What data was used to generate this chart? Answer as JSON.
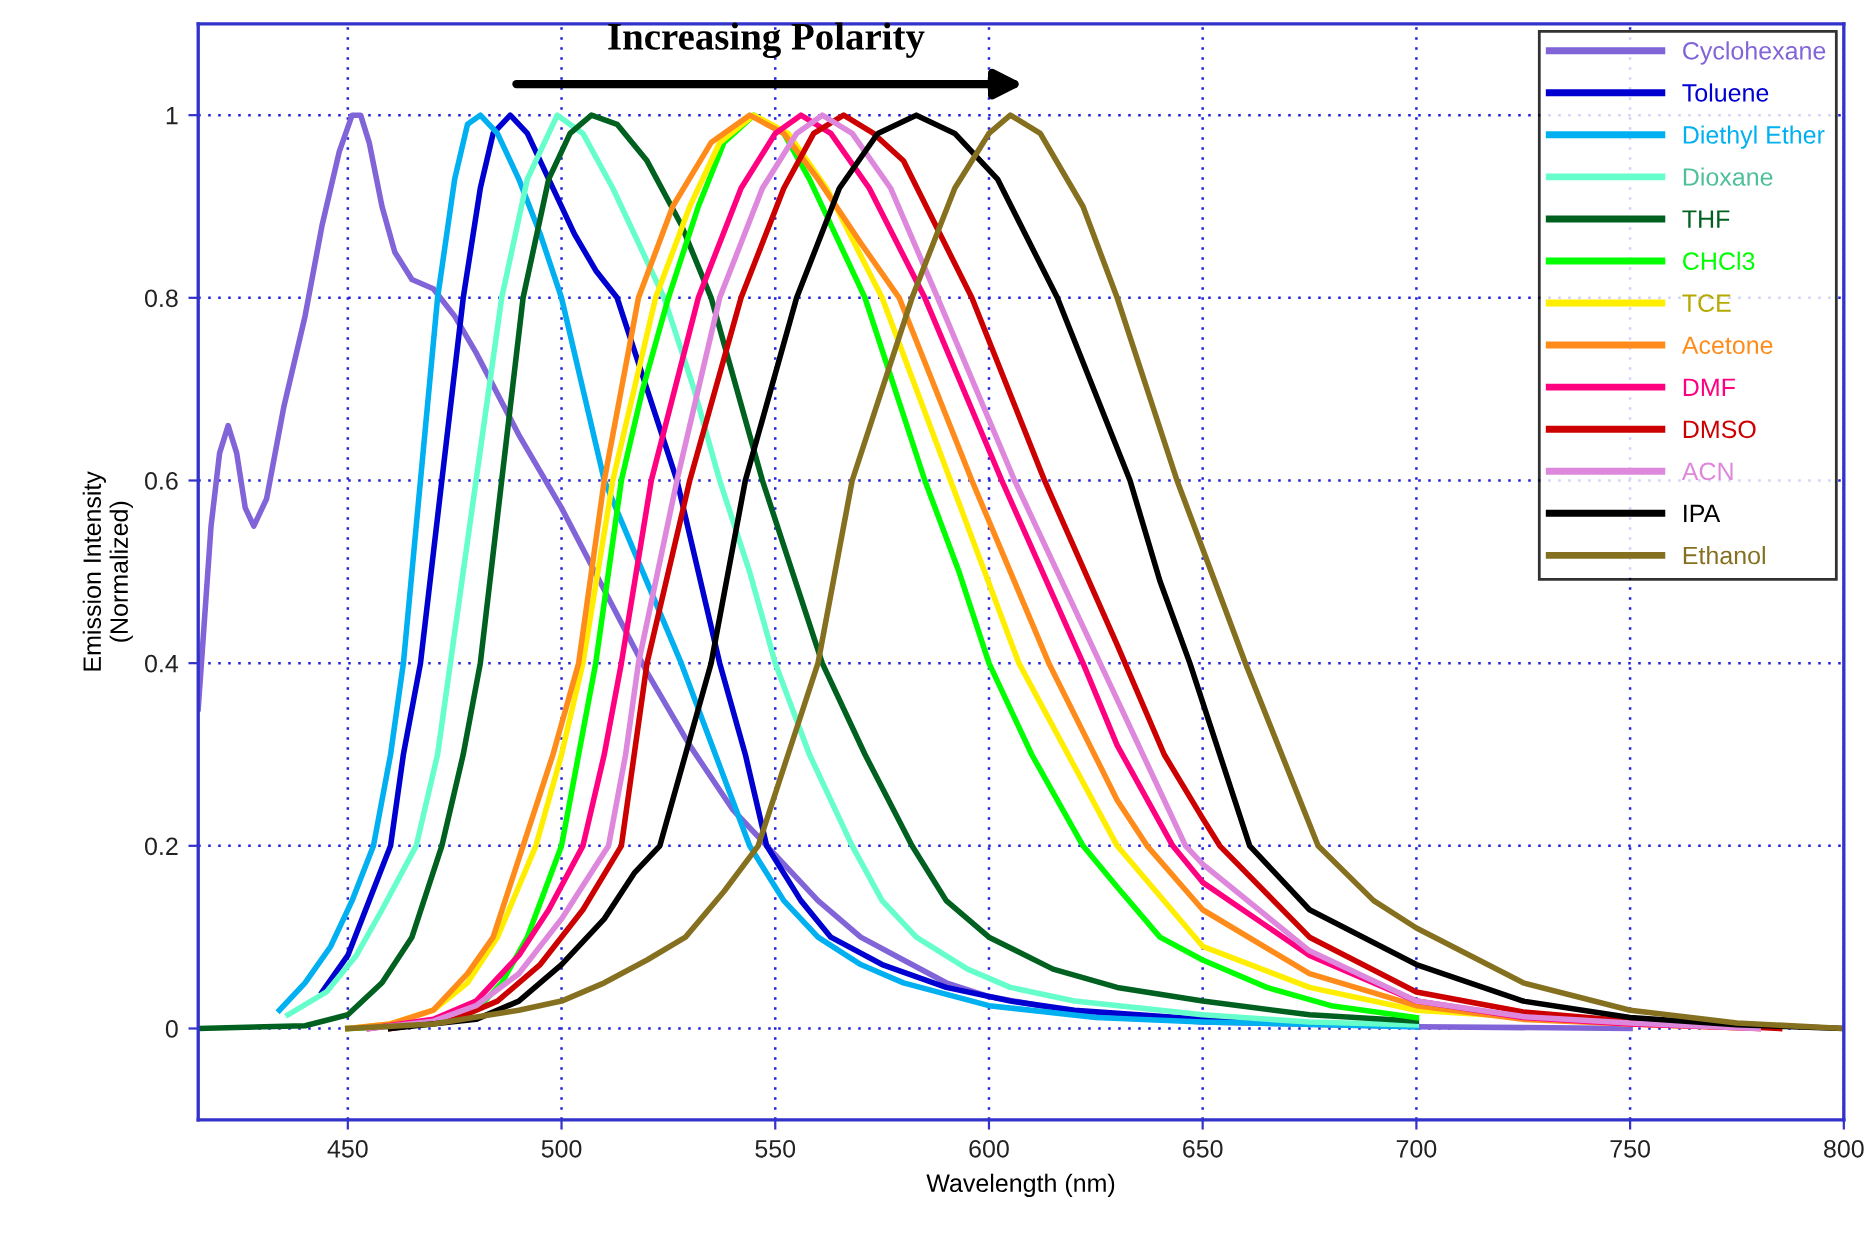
{
  "chart_data": {
    "type": "line",
    "xlabel": "Wavelength (nm)",
    "ylabel": "Emission Intensity\n(Normalized)",
    "annotations": [
      "Increasing Polarity"
    ],
    "xlim": [
      415,
      800
    ],
    "xticks": [
      450,
      500,
      550,
      600,
      650,
      700,
      750,
      800
    ],
    "ylim": [
      -0.1,
      1.1
    ],
    "yticks": [
      0,
      0.2,
      0.4,
      0.6,
      0.8,
      1
    ],
    "grid": true,
    "legend": "top right",
    "line_style": "solid",
    "marker": "none",
    "series": [
      {
        "name": "Cyclohexane",
        "color": "#8064d8",
        "x": [
          415,
          418,
          420,
          422,
          424,
          426,
          428,
          431,
          435,
          440,
          444,
          448,
          451,
          453,
          455,
          458,
          461,
          465,
          470,
          475,
          480,
          490,
          500,
          510,
          520,
          530,
          540,
          550,
          560,
          570,
          580,
          590,
          600,
          620,
          650,
          700,
          750
        ],
        "values": [
          0.35,
          0.55,
          0.63,
          0.66,
          0.63,
          0.57,
          0.55,
          0.58,
          0.68,
          0.78,
          0.88,
          0.96,
          1.0,
          1.0,
          0.97,
          0.9,
          0.85,
          0.82,
          0.81,
          0.78,
          0.74,
          0.65,
          0.57,
          0.48,
          0.39,
          0.31,
          0.24,
          0.19,
          0.14,
          0.1,
          0.075,
          0.05,
          0.035,
          0.018,
          0.007,
          0.002,
          0.0
        ]
      },
      {
        "name": "Toluene",
        "color": "#0000d0",
        "x": [
          444,
          450,
          455,
          460,
          463,
          467,
          472,
          477,
          481,
          484,
          488,
          492,
          497,
          503,
          508,
          513,
          520,
          527,
          532,
          537,
          543,
          548,
          556,
          563,
          575,
          590,
          605,
          620,
          650,
          680,
          700
        ],
        "values": [
          0.04,
          0.08,
          0.14,
          0.2,
          0.3,
          0.4,
          0.6,
          0.8,
          0.92,
          0.98,
          1.0,
          0.98,
          0.93,
          0.87,
          0.83,
          0.8,
          0.7,
          0.6,
          0.5,
          0.4,
          0.3,
          0.2,
          0.14,
          0.1,
          0.07,
          0.045,
          0.03,
          0.02,
          0.01,
          0.005,
          0.003
        ]
      },
      {
        "name": "Diethyl Ether",
        "color": "#00b0f0",
        "x": [
          434,
          440,
          446,
          451,
          456,
          460,
          463,
          467,
          471,
          475,
          478,
          481,
          485,
          490,
          495,
          500,
          505,
          510,
          519,
          528,
          536,
          544,
          552,
          560,
          570,
          580,
          600,
          625,
          650,
          700
        ],
        "values": [
          0.02,
          0.05,
          0.09,
          0.14,
          0.2,
          0.3,
          0.4,
          0.6,
          0.8,
          0.93,
          0.99,
          1.0,
          0.98,
          0.93,
          0.87,
          0.8,
          0.7,
          0.6,
          0.5,
          0.4,
          0.3,
          0.2,
          0.14,
          0.1,
          0.07,
          0.05,
          0.025,
          0.012,
          0.007,
          0.002
        ]
      },
      {
        "name": "Dioxane",
        "color": "#66ffcc",
        "x": [
          436,
          445,
          452,
          458,
          466,
          471,
          474,
          480,
          486,
          492,
          499,
          505,
          512,
          518,
          524,
          531,
          537,
          544,
          550,
          558,
          568,
          575,
          583,
          595,
          605,
          620,
          650,
          675,
          700
        ],
        "values": [
          0.015,
          0.04,
          0.08,
          0.13,
          0.2,
          0.3,
          0.4,
          0.6,
          0.8,
          0.93,
          1.0,
          0.98,
          0.92,
          0.86,
          0.8,
          0.7,
          0.6,
          0.5,
          0.4,
          0.3,
          0.2,
          0.14,
          0.1,
          0.065,
          0.045,
          0.03,
          0.015,
          0.007,
          0.004
        ]
      },
      {
        "name": "THF",
        "color": "#006020",
        "x": [
          415,
          440,
          450,
          458,
          465,
          472,
          477,
          481,
          486,
          491,
          497,
          502,
          507,
          513,
          520,
          528,
          535,
          541,
          547,
          554,
          561,
          571,
          582,
          590,
          600,
          615,
          630,
          650,
          675,
          700
        ],
        "values": [
          0.0,
          0.003,
          0.015,
          0.05,
          0.1,
          0.2,
          0.3,
          0.4,
          0.6,
          0.8,
          0.93,
          0.98,
          1.0,
          0.99,
          0.95,
          0.88,
          0.8,
          0.7,
          0.6,
          0.5,
          0.4,
          0.3,
          0.2,
          0.14,
          0.1,
          0.065,
          0.045,
          0.03,
          0.015,
          0.008
        ]
      },
      {
        "name": "CHCl3",
        "color": "#00ff00",
        "x": [
          450,
          470,
          480,
          486,
          492,
          500,
          504,
          508,
          511,
          514,
          519,
          525,
          532,
          538,
          545,
          552,
          558,
          564,
          571,
          578,
          585,
          593,
          600,
          610,
          622,
          630,
          640,
          650,
          665,
          680,
          700
        ],
        "values": [
          0.0,
          0.005,
          0.02,
          0.05,
          0.1,
          0.2,
          0.3,
          0.4,
          0.5,
          0.6,
          0.7,
          0.8,
          0.9,
          0.97,
          1.0,
          0.98,
          0.93,
          0.87,
          0.8,
          0.7,
          0.6,
          0.5,
          0.4,
          0.3,
          0.2,
          0.155,
          0.1,
          0.075,
          0.045,
          0.025,
          0.012
        ]
      },
      {
        "name": "TCE",
        "color": "#ffee00",
        "x": [
          450,
          460,
          470,
          478,
          485,
          494,
          500,
          505,
          512,
          522,
          530,
          537,
          545,
          553,
          562,
          575,
          591,
          607,
          630,
          650,
          675,
          700,
          750,
          780
        ],
        "values": [
          0.0,
          0.005,
          0.02,
          0.05,
          0.1,
          0.2,
          0.3,
          0.4,
          0.6,
          0.8,
          0.9,
          0.97,
          1.0,
          0.98,
          0.92,
          0.8,
          0.6,
          0.4,
          0.2,
          0.09,
          0.045,
          0.02,
          0.005,
          0.0
        ]
      },
      {
        "name": "Acetone",
        "color": "#ff8c1a",
        "x": [
          450,
          460,
          470,
          478,
          484,
          491,
          498,
          504,
          510,
          518,
          526,
          535,
          544,
          552,
          560,
          570,
          579,
          596,
          614,
          630,
          637,
          650,
          675,
          700,
          725,
          750,
          780
        ],
        "values": [
          0.0,
          0.005,
          0.02,
          0.06,
          0.1,
          0.2,
          0.3,
          0.4,
          0.6,
          0.8,
          0.9,
          0.97,
          1.0,
          0.98,
          0.93,
          0.86,
          0.8,
          0.6,
          0.4,
          0.25,
          0.2,
          0.13,
          0.06,
          0.025,
          0.01,
          0.005,
          0.0
        ]
      },
      {
        "name": "DMF",
        "color": "#ff0080",
        "x": [
          455,
          470,
          480,
          490,
          497,
          505,
          510,
          514,
          521,
          532,
          542,
          550,
          556,
          563,
          572,
          585,
          603,
          622,
          630,
          643,
          650,
          675,
          700,
          725,
          750,
          780
        ],
        "values": [
          0.0,
          0.01,
          0.03,
          0.08,
          0.13,
          0.2,
          0.3,
          0.4,
          0.6,
          0.8,
          0.92,
          0.98,
          1.0,
          0.98,
          0.92,
          0.8,
          0.6,
          0.4,
          0.31,
          0.2,
          0.16,
          0.08,
          0.03,
          0.012,
          0.005,
          0.0
        ]
      },
      {
        "name": "DMSO",
        "color": "#cc0000",
        "x": [
          460,
          475,
          485,
          495,
          505,
          514,
          517,
          520,
          530,
          542,
          552,
          559,
          566,
          573,
          580,
          596,
          613,
          630,
          641,
          650,
          654,
          675,
          700,
          725,
          750,
          785
        ],
        "values": [
          0.0,
          0.01,
          0.03,
          0.07,
          0.13,
          0.2,
          0.3,
          0.4,
          0.6,
          0.8,
          0.92,
          0.98,
          1.0,
          0.98,
          0.95,
          0.8,
          0.6,
          0.42,
          0.3,
          0.23,
          0.2,
          0.1,
          0.04,
          0.018,
          0.008,
          0.0
        ]
      },
      {
        "name": "ACN",
        "color": "#dd88dd",
        "x": [
          455,
          470,
          480,
          490,
          500,
          511,
          515,
          518,
          527,
          537,
          547,
          555,
          561,
          568,
          577,
          588,
          606,
          626,
          630,
          646,
          650,
          675,
          700,
          725,
          750,
          780
        ],
        "values": [
          0.0,
          0.008,
          0.025,
          0.06,
          0.12,
          0.2,
          0.3,
          0.4,
          0.6,
          0.8,
          0.92,
          0.98,
          1.0,
          0.98,
          0.92,
          0.8,
          0.6,
          0.4,
          0.36,
          0.2,
          0.18,
          0.085,
          0.03,
          0.013,
          0.006,
          0.0
        ]
      },
      {
        "name": "IPA",
        "color": "#000000",
        "x": [
          460,
          480,
          490,
          500,
          510,
          517,
          523,
          529,
          535,
          543,
          555,
          565,
          574,
          583,
          592,
          602,
          616,
          633,
          640,
          647,
          661,
          675,
          700,
          725,
          750,
          775,
          800
        ],
        "values": [
          0.0,
          0.01,
          0.03,
          0.07,
          0.12,
          0.17,
          0.2,
          0.3,
          0.4,
          0.6,
          0.8,
          0.92,
          0.98,
          1.0,
          0.98,
          0.93,
          0.8,
          0.6,
          0.49,
          0.4,
          0.2,
          0.13,
          0.07,
          0.03,
          0.012,
          0.004,
          0.0
        ]
      },
      {
        "name": "Ethanol",
        "color": "#857020",
        "x": [
          450,
          470,
          490,
          500,
          510,
          520,
          529,
          538,
          546,
          553,
          560,
          568,
          582,
          592,
          600,
          605,
          612,
          622,
          630,
          644,
          652,
          660,
          677,
          690,
          700,
          725,
          750,
          775,
          800
        ],
        "values": [
          0.0,
          0.005,
          0.02,
          0.03,
          0.05,
          0.075,
          0.1,
          0.15,
          0.2,
          0.3,
          0.4,
          0.6,
          0.8,
          0.92,
          0.98,
          1.0,
          0.98,
          0.9,
          0.8,
          0.6,
          0.5,
          0.4,
          0.2,
          0.14,
          0.11,
          0.05,
          0.02,
          0.006,
          0.0
        ]
      }
    ]
  }
}
